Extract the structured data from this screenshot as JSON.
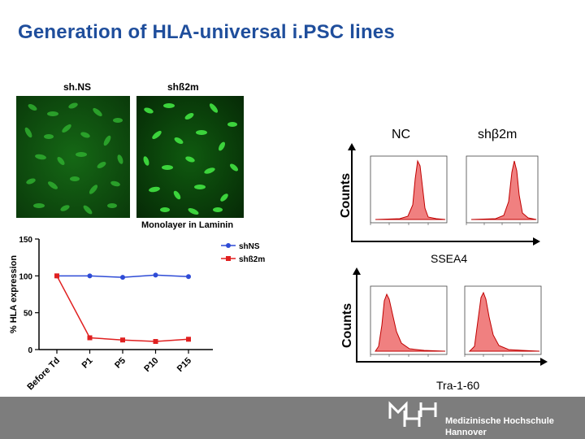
{
  "title": "Generation of HLA-universal i.PSC lines",
  "images": {
    "left_label": "sh.NS",
    "right_label": "shß2m",
    "caption": "Monolayer in Laminin"
  },
  "flow": {
    "nc_label": "NC",
    "shb2m_label": "shβ2m",
    "counts_label": "Counts",
    "ssea4_label": "SSEA4",
    "tra_label": "Tra-1-60"
  },
  "colors": {
    "title": "#1f4e9c",
    "shNS": "#2e4bd6",
    "shb2m": "#e02020",
    "histogram": "#f08080"
  },
  "logo": {
    "line1": "Medizinische Hochschule",
    "line2": "Hannover"
  },
  "chart_data": {
    "type": "line",
    "categories": [
      "Before Td",
      "P1",
      "P5",
      "P10",
      "P15"
    ],
    "series": [
      {
        "name": "shNS",
        "values": [
          100,
          100,
          98,
          101,
          99
        ]
      },
      {
        "name": "shß2m",
        "values": [
          100,
          16,
          13,
          11,
          14
        ]
      }
    ],
    "title": "",
    "xlabel": "",
    "ylabel": "% HLA expression",
    "ylim": [
      0,
      150
    ],
    "yticks": [
      0,
      50,
      100,
      150
    ],
    "legend": "top-right",
    "grid": false
  }
}
